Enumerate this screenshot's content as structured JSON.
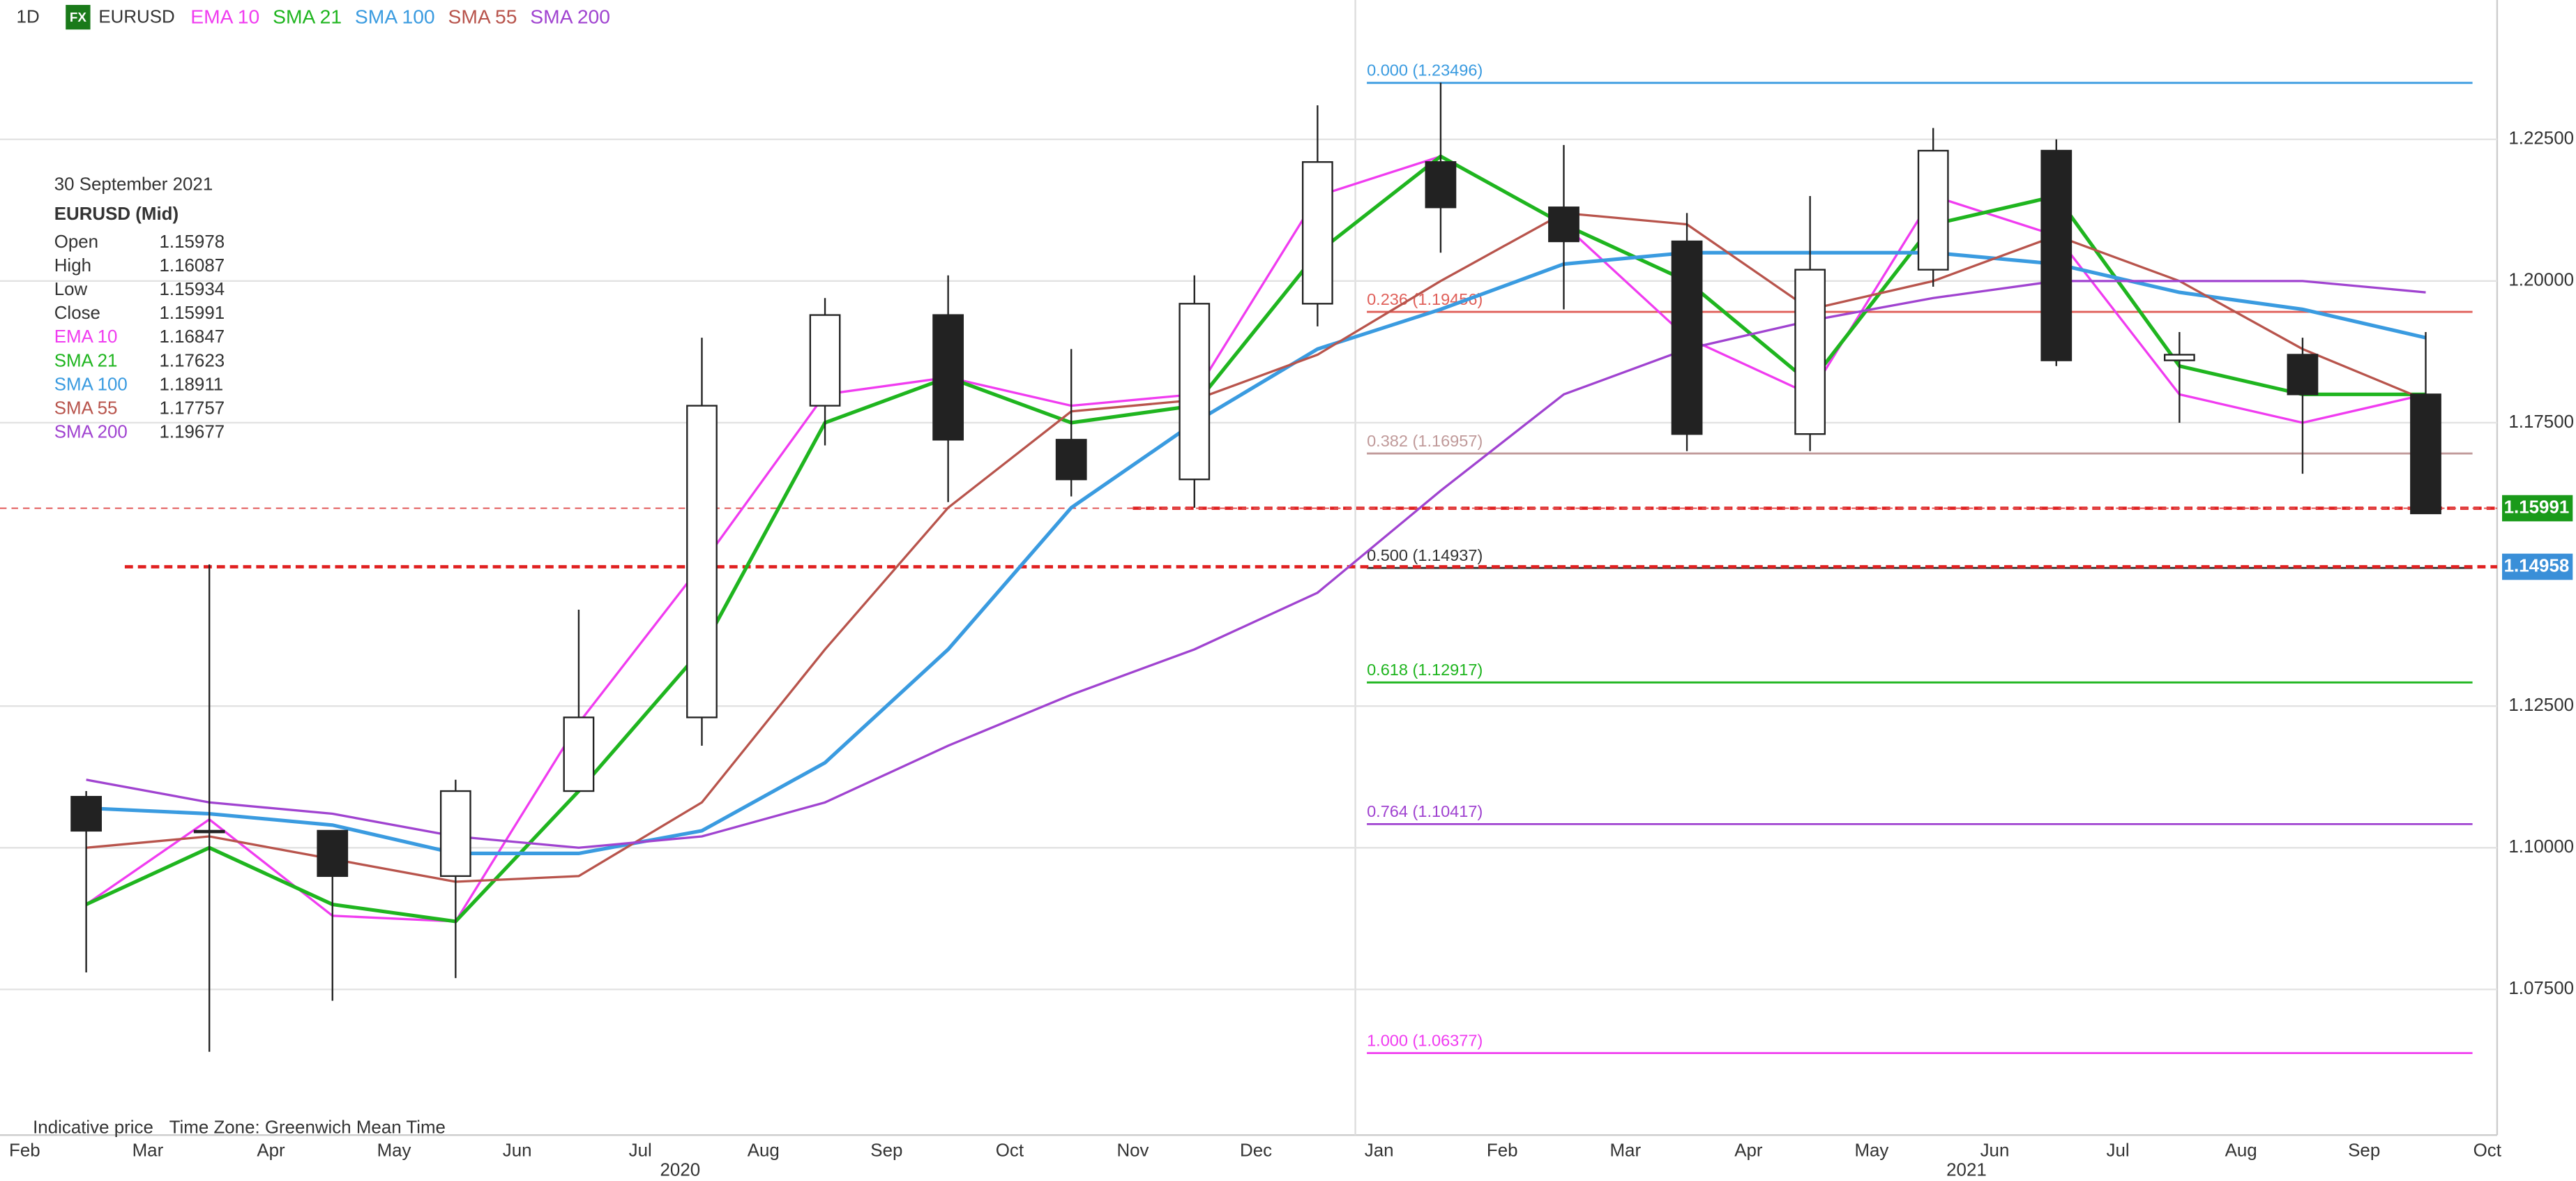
{
  "chart_data": {
    "type": "candlestick",
    "timeframe": "1D",
    "badge": "FX",
    "symbol": "EURUSD",
    "categories": [
      "Feb",
      "Mar",
      "Apr",
      "May",
      "Jun",
      "Jul",
      "Aug",
      "Sep",
      "Oct",
      "Nov",
      "Dec",
      "Jan",
      "Feb",
      "Mar",
      "Apr",
      "May",
      "Jun",
      "Jul",
      "Aug",
      "Sep"
    ],
    "x_end_label": "Oct",
    "years": [
      "2020",
      "2021"
    ],
    "open": [
      1.109,
      1.103,
      1.103,
      1.095,
      1.11,
      1.123,
      1.178,
      1.194,
      1.172,
      1.165,
      1.196,
      1.221,
      1.213,
      1.207,
      1.173,
      1.202,
      1.223,
      1.186,
      1.187,
      1.18
    ],
    "high": [
      1.11,
      1.15,
      1.102,
      1.112,
      1.142,
      1.19,
      1.197,
      1.201,
      1.188,
      1.201,
      1.231,
      1.235,
      1.224,
      1.212,
      1.215,
      1.227,
      1.225,
      1.191,
      1.19,
      1.191
    ],
    "low": [
      1.078,
      1.064,
      1.073,
      1.077,
      1.11,
      1.118,
      1.171,
      1.161,
      1.162,
      1.16,
      1.192,
      1.205,
      1.195,
      1.17,
      1.17,
      1.199,
      1.185,
      1.175,
      1.166,
      1.159
    ],
    "close": [
      1.103,
      1.103,
      1.095,
      1.11,
      1.123,
      1.178,
      1.194,
      1.172,
      1.165,
      1.196,
      1.221,
      1.213,
      1.207,
      1.173,
      1.202,
      1.223,
      1.186,
      1.187,
      1.18,
      1.159
    ],
    "up_color": "#ffffff",
    "down_color": "#222222",
    "series": [
      {
        "name": "EMA 10",
        "color": "#f03cf0",
        "values": [
          1.09,
          1.105,
          1.088,
          1.087,
          1.122,
          1.15,
          1.18,
          1.183,
          1.178,
          1.18,
          1.215,
          1.222,
          1.21,
          1.19,
          1.18,
          1.215,
          1.208,
          1.18,
          1.175,
          1.18
        ]
      },
      {
        "name": "SMA 21",
        "color": "#1fb51f",
        "values": [
          1.09,
          1.1,
          1.09,
          1.087,
          1.11,
          1.135,
          1.175,
          1.183,
          1.175,
          1.178,
          1.205,
          1.222,
          1.21,
          1.2,
          1.182,
          1.21,
          1.215,
          1.185,
          1.18,
          1.18
        ]
      },
      {
        "name": "SMA 100",
        "color": "#3a9be0",
        "values": [
          1.107,
          1.106,
          1.104,
          1.099,
          1.099,
          1.103,
          1.115,
          1.135,
          1.16,
          1.175,
          1.188,
          1.195,
          1.203,
          1.205,
          1.205,
          1.205,
          1.203,
          1.198,
          1.195,
          1.19
        ]
      },
      {
        "name": "SMA 55",
        "color": "#b8544c",
        "values": [
          1.1,
          1.102,
          1.098,
          1.094,
          1.095,
          1.108,
          1.135,
          1.16,
          1.177,
          1.179,
          1.187,
          1.2,
          1.212,
          1.21,
          1.195,
          1.2,
          1.208,
          1.2,
          1.188,
          1.179
        ]
      },
      {
        "name": "SMA 200",
        "color": "#a043d0",
        "values": [
          1.112,
          1.108,
          1.106,
          1.102,
          1.1,
          1.102,
          1.108,
          1.118,
          1.127,
          1.135,
          1.145,
          1.163,
          1.18,
          1.188,
          1.193,
          1.197,
          1.2,
          1.2,
          1.2,
          1.198
        ]
      }
    ],
    "fib_levels": [
      {
        "label": "0.000 (1.23496)",
        "value": 1.23496,
        "color": "#3a9be0"
      },
      {
        "label": "0.236 (1.19456)",
        "value": 1.19456,
        "color": "#e0605a"
      },
      {
        "label": "0.382 (1.16957)",
        "value": 1.16957,
        "color": "#c09a9a"
      },
      {
        "label": "0.500 (1.14937)",
        "value": 1.14937,
        "color": "#333333"
      },
      {
        "label": "0.618 (1.12917)",
        "value": 1.12917,
        "color": "#1fb51f"
      },
      {
        "label": "0.764 (1.10417)",
        "value": 1.10417,
        "color": "#a043d0"
      },
      {
        "label": "1.000 (1.06377)",
        "value": 1.06377,
        "color": "#f03cf0"
      }
    ],
    "price_line": {
      "value": 1.15991,
      "label": "1.15991",
      "color": "#1a9a1a"
    },
    "level_line": {
      "value": 1.14958,
      "label": "1.14958",
      "color": "#3a8fd8"
    },
    "ylim": [
      1.0493,
      1.2438
    ],
    "yticks": [
      {
        "value": 1.225,
        "label": "1.22500"
      },
      {
        "value": 1.2,
        "label": "1.20000"
      },
      {
        "value": 1.175,
        "label": "1.17500"
      },
      {
        "value": 1.125,
        "label": "1.12500"
      },
      {
        "value": 1.1,
        "label": "1.10000"
      },
      {
        "value": 1.075,
        "label": "1.07500"
      }
    ],
    "grid": true,
    "info": {
      "date": "30 September 2021",
      "title": "EURUSD (Mid)",
      "rows": [
        {
          "label": "Open",
          "value": 1.15978
        },
        {
          "label": "High",
          "value": 1.16087
        },
        {
          "label": "Low",
          "value": 1.15934
        },
        {
          "label": "Close",
          "value": 1.15991
        }
      ],
      "ma_values": [
        1.16847,
        1.17623,
        1.18911,
        1.17757,
        1.19677
      ]
    },
    "footer": [
      "Indicative price",
      "Time Zone: Greenwich Mean Time"
    ]
  }
}
